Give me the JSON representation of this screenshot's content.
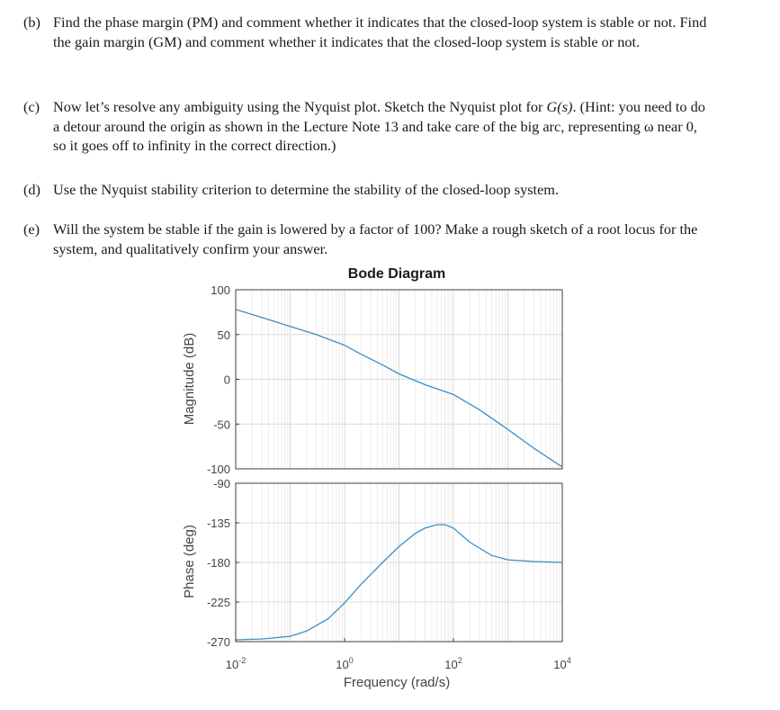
{
  "questions": [
    {
      "label": "(b)",
      "text": "Find the phase margin (PM) and comment whether it indicates that the closed-loop system is stable or not. Find the gain margin (GM) and comment whether it indicates that the closed-loop system is stable or not."
    },
    {
      "label": "(c)",
      "text_a": "Now let’s resolve any ambiguity using the Nyquist plot. Sketch the Nyquist plot for ",
      "math": "G(s)",
      "text_b": ". (Hint: you need to do a detour around the origin as shown in the Lecture Note 13 and take care of the big arc, representing ω near 0, so it goes off to infinity in the correct direction.)"
    },
    {
      "label": "(d)",
      "text": "Use the Nyquist stability criterion to determine the stability of the closed-loop system."
    },
    {
      "label": "(e)",
      "text": "Will the system be stable if the gain is lowered by a factor of 100? Make a rough sketch of a root locus for the system, and qualitatively confirm your answer."
    }
  ],
  "chart_data": {
    "type": "line",
    "title": "Bode Diagram",
    "xlabel": "Frequency (rad/s)",
    "xscale": "log",
    "xlim": [
      0.01,
      10000
    ],
    "xticks": [
      {
        "base": "10",
        "exp": "-2",
        "value": 0.01
      },
      {
        "base": "10",
        "exp": "0",
        "value": 1
      },
      {
        "base": "10",
        "exp": "2",
        "value": 100
      },
      {
        "base": "10",
        "exp": "4",
        "value": 10000
      }
    ],
    "grid": true,
    "line_color": "#3a8fc7",
    "panels": [
      {
        "name": "magnitude",
        "ylabel": "Magnitude (dB)",
        "ylim": [
          -100,
          100
        ],
        "yticks": [
          "100",
          "50",
          "0",
          "-50",
          "-100"
        ],
        "ytick_values": [
          100,
          50,
          0,
          -50,
          -100
        ],
        "x": [
          0.01,
          0.03,
          0.1,
          0.3,
          1,
          2,
          5,
          10,
          30,
          100,
          300,
          1000,
          3000,
          10000
        ],
        "y": [
          78,
          69,
          59,
          50,
          38,
          28,
          16,
          6,
          -6,
          -17,
          -34,
          -56,
          -77,
          -98
        ]
      },
      {
        "name": "phase",
        "ylabel": "Phase (deg)",
        "ylim": [
          -270,
          -90
        ],
        "yticks": [
          "-90",
          "-135",
          "-180",
          "-225",
          "-270"
        ],
        "ytick_values": [
          -90,
          -135,
          -180,
          -225,
          -270
        ],
        "x": [
          0.01,
          0.03,
          0.1,
          0.2,
          0.5,
          1,
          2,
          5,
          10,
          20,
          30,
          50,
          70,
          100,
          200,
          500,
          1000,
          3000,
          10000
        ],
        "y": [
          -268,
          -267,
          -264,
          -258,
          -244,
          -226,
          -205,
          -180,
          -162,
          -147,
          -141,
          -137,
          -137,
          -141,
          -157,
          -172,
          -177,
          -179,
          -180
        ]
      }
    ]
  }
}
